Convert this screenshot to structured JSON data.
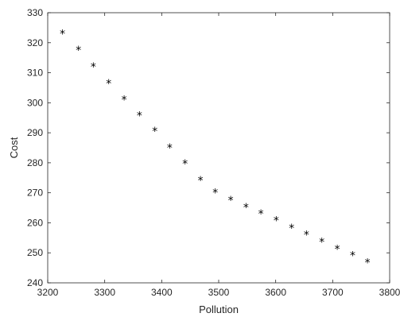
{
  "chart_data": {
    "type": "scatter",
    "title": "",
    "xlabel": "Pollution",
    "ylabel": "Cost",
    "xlim": [
      3200,
      3800
    ],
    "ylim": [
      240,
      330
    ],
    "xticks": [
      3200,
      3300,
      3400,
      3500,
      3600,
      3700,
      3800
    ],
    "yticks": [
      240,
      250,
      260,
      270,
      280,
      290,
      300,
      310,
      320,
      330
    ],
    "grid": false,
    "legend": "none",
    "marker": "*",
    "marker_color": "#000000",
    "series": [
      {
        "x": [
          3226,
          3254,
          3280,
          3307,
          3334,
          3361,
          3388,
          3414,
          3441,
          3468,
          3494,
          3521,
          3548,
          3574,
          3601,
          3628,
          3654,
          3681,
          3708,
          3735,
          3761
        ],
        "y": [
          323,
          317.5,
          312,
          306.5,
          301,
          295.7,
          290.5,
          285,
          279.7,
          274.2,
          270,
          267.5,
          265.2,
          263,
          260.8,
          258.2,
          256,
          253.6,
          251.3,
          249.1,
          246.8
        ]
      }
    ]
  }
}
